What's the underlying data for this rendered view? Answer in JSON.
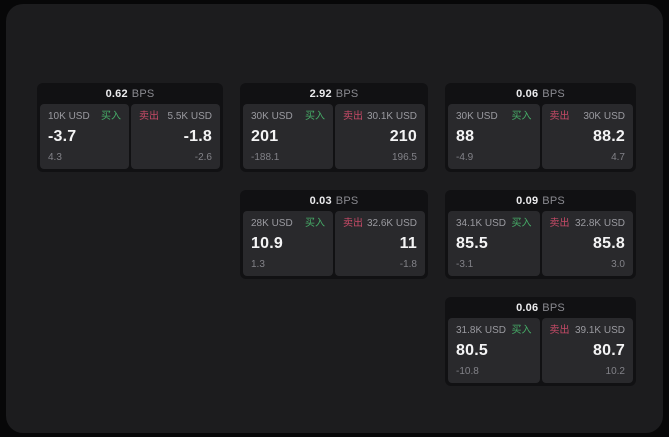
{
  "labels": {
    "bps_unit": "BPS",
    "buy": "买入",
    "sell": "卖出"
  },
  "colors": {
    "page-bg": "#070708",
    "panel-bg": "#1c1c1e",
    "card-bg": "#111113",
    "subpanel-bg": "#29292c",
    "text-primary": "#f4f4f5",
    "text-secondary": "#9a9aa0",
    "text-muted": "#8a8a90",
    "text-muted2": "#828288",
    "buy": "#46ad68",
    "sell": "#c64a67"
  },
  "cards": [
    {
      "bps": "0.62",
      "buy": {
        "amount": "10K USD",
        "price": "-3.7",
        "delta": "4.3"
      },
      "sell": {
        "amount": "5.5K USD",
        "price": "-1.8",
        "delta": "-2.6"
      }
    },
    {
      "bps": "2.92",
      "buy": {
        "amount": "30K USD",
        "price": "201",
        "delta": "-188.1"
      },
      "sell": {
        "amount": "30.1K USD",
        "price": "210",
        "delta": "196.5"
      }
    },
    {
      "bps": "0.06",
      "buy": {
        "amount": "30K USD",
        "price": "88",
        "delta": "-4.9"
      },
      "sell": {
        "amount": "30K USD",
        "price": "88.2",
        "delta": "4.7"
      }
    },
    {
      "bps": "0.03",
      "buy": {
        "amount": "28K USD",
        "price": "10.9",
        "delta": "1.3"
      },
      "sell": {
        "amount": "32.6K USD",
        "price": "11",
        "delta": "-1.8"
      }
    },
    {
      "bps": "0.09",
      "buy": {
        "amount": "34.1K USD",
        "price": "85.5",
        "delta": "-3.1"
      },
      "sell": {
        "amount": "32.8K USD",
        "price": "85.8",
        "delta": "3.0"
      }
    },
    {
      "bps": "0.06",
      "buy": {
        "amount": "31.8K USD",
        "price": "80.5",
        "delta": "-10.8"
      },
      "sell": {
        "amount": "39.1K USD",
        "price": "80.7",
        "delta": "10.2"
      }
    }
  ]
}
